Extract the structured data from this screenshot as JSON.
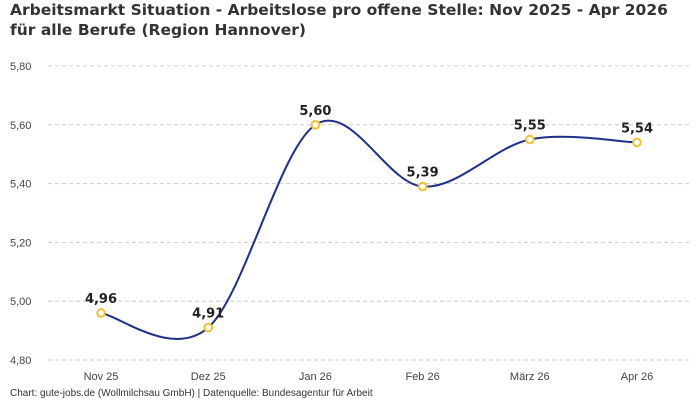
{
  "chart_data": {
    "type": "line",
    "title": "Arbeitsmarkt Situation - Arbeitslose pro offene Stelle: Nov 2025 - Apr 2026 für alle Berufe (Region Hannover)",
    "categories": [
      "Nov 25",
      "Dez 25",
      "Jan 26",
      "Feb 26",
      "März 26",
      "Apr 26"
    ],
    "series": [
      {
        "values": [
          4.96,
          4.91,
          5.6,
          5.39,
          5.55,
          5.54
        ],
        "labels": [
          "4,96",
          "4,91",
          "5,60",
          "5,39",
          "5,55",
          "5,54"
        ]
      }
    ],
    "ylim": [
      4.8,
      5.8
    ],
    "yticks": [
      "4,80",
      "5,00",
      "5,20",
      "5,40",
      "5,60",
      "5,80"
    ],
    "grid": "horizontal dashed",
    "xlabel": "",
    "ylabel": "",
    "colors": {
      "line": "#1f2f8c",
      "marker_stroke": "#f2c12e",
      "marker_fill": "#ffffff",
      "grid": "#cccccc"
    }
  },
  "footer": "Chart: gute-jobs.de (Wollmilchsau GmbH) | Datenquelle: Bundesagentur für Arbeit"
}
